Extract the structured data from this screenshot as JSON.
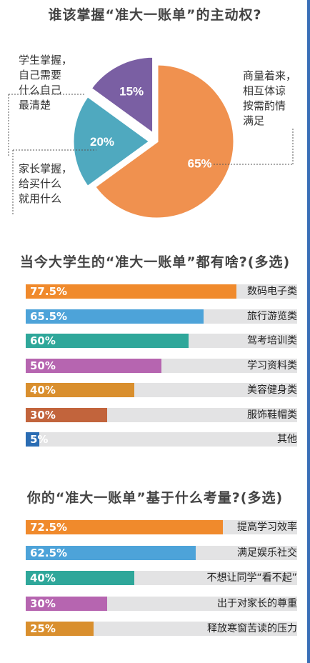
{
  "chart_data": [
    {
      "type": "pie",
      "title": "谁该掌握“准大一账单”的主动权?",
      "slices": [
        {
          "label": "商量着来，相互体谅按需酌情满足",
          "value": 65,
          "value_label": "65%",
          "color": "#f0914f"
        },
        {
          "label": "家长掌握，给买什么就用什么",
          "value": 20,
          "value_label": "20%",
          "color": "#4fa9bf"
        },
        {
          "label": "学生掌握，自己需要什么自己最清楚",
          "value": 15,
          "value_label": "15%",
          "color": "#7a5fa3"
        }
      ],
      "annotations": {
        "student": [
          "学生掌握，",
          "自己需要",
          "什么自己",
          "最清楚"
        ],
        "negotiate": [
          "商量着来，",
          "相互体谅",
          "按需酌情",
          "满足"
        ],
        "parent": [
          "家长掌握，",
          "给买什么",
          "就用什么"
        ]
      }
    },
    {
      "type": "bar",
      "title": "当今大学生的“准大一账单”都有啥?(多选)",
      "categories": [
        "数码电子类",
        "旅行游览类",
        "驾考培训类",
        "学习资料类",
        "美容健身类",
        "服饰鞋帽类",
        "其他"
      ],
      "values": [
        77.5,
        65.5,
        60,
        50,
        40,
        30,
        5
      ],
      "value_labels": [
        "77.5%",
        "65.5%",
        "60%",
        "50%",
        "40%",
        "30%",
        "5%"
      ],
      "colors": [
        "#f08a2c",
        "#4da3d9",
        "#2fa79a",
        "#b665b0",
        "#d98f2e",
        "#c2643c",
        "#2a6cb3"
      ],
      "xlim": [
        0,
        100
      ]
    },
    {
      "type": "bar",
      "title": "你的“准大一账单”基于什么考量?(多选)",
      "categories": [
        "提高学习效率",
        "满足娱乐社交",
        "不想让同学“看不起”",
        "出于对家长的尊重",
        "释放寒窗苦读的压力"
      ],
      "values": [
        72.5,
        62.5,
        40,
        30,
        25
      ],
      "value_labels": [
        "72.5%",
        "62.5%",
        "40%",
        "30%",
        "25%"
      ],
      "colors": [
        "#f08a2c",
        "#4da3d9",
        "#2fa79a",
        "#b665b0",
        "#d98f2e"
      ],
      "xlim": [
        0,
        100
      ]
    }
  ]
}
